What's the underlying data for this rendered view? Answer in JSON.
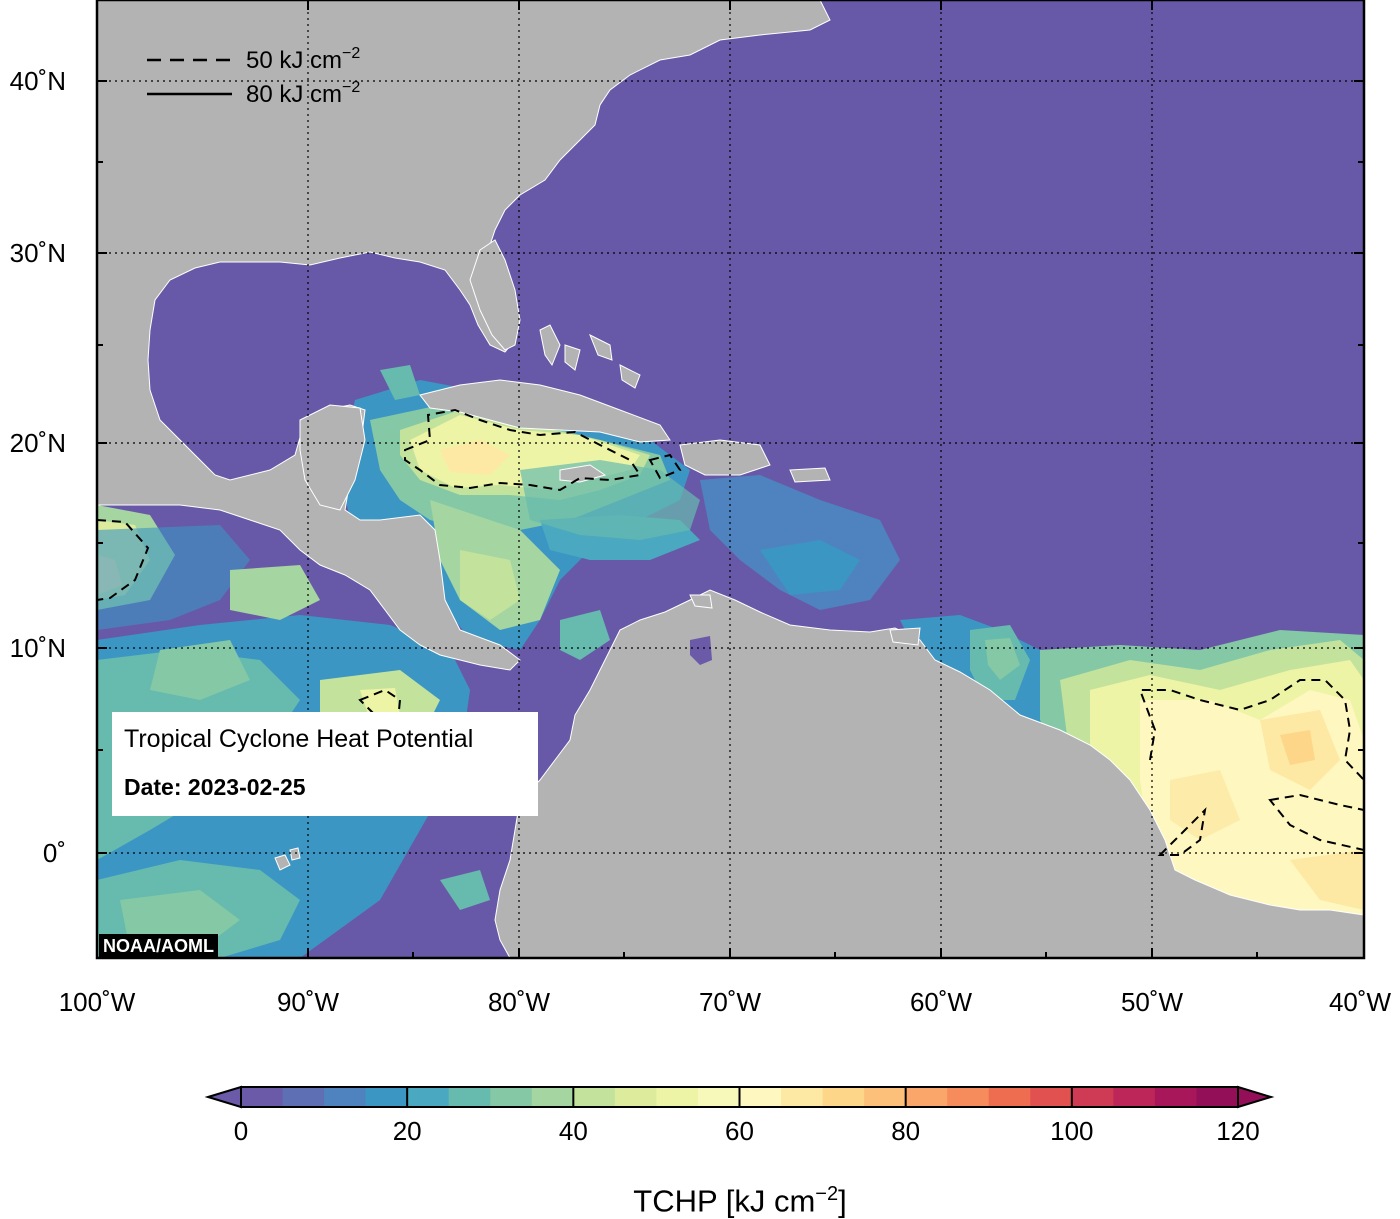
{
  "title": "Tropical Cyclone Heat Potential",
  "date_label": "Date: 2023-02-25",
  "credit": "NOAA/AOML",
  "legend": {
    "dashed_label": "50 kJ cm",
    "solid_label": "80 kJ cm",
    "unit_superscript": "−2"
  },
  "colorbar": {
    "label_main": "TCHP [kJ cm",
    "label_sup": "−2",
    "label_end": "]",
    "range": [
      0,
      120
    ],
    "ticks": [
      "0",
      "20",
      "40",
      "60",
      "80",
      "100",
      "120"
    ],
    "colors": [
      "#6a5aa8",
      "#5e6fb4",
      "#4e83bf",
      "#3c96c3",
      "#4aa9c0",
      "#66bbae",
      "#84c8a6",
      "#a5d5a0",
      "#c3e29c",
      "#dcec9c",
      "#edf4a5",
      "#f7f9bb",
      "#fef7bf",
      "#fde9a4",
      "#fdd68a",
      "#fcc07a",
      "#faa66a",
      "#f68b5c",
      "#ee6d50",
      "#e05150",
      "#cf3b54",
      "#bd2658",
      "#a8175a",
      "#931059"
    ]
  },
  "axes": {
    "lon_labels": [
      "100˚W",
      "90˚W",
      "80˚W",
      "70˚W",
      "60˚W",
      "50˚W",
      "40˚W"
    ],
    "lat_labels": [
      "40˚N",
      "30˚N",
      "20˚N",
      "10˚N",
      "0˚"
    ],
    "lon_range": [
      -100,
      -40
    ],
    "lat_range": [
      -5,
      45
    ],
    "grid": true
  },
  "colors": {
    "land": "#b3b3b3",
    "low_tchp_ocean": "#6a5aa8"
  }
}
